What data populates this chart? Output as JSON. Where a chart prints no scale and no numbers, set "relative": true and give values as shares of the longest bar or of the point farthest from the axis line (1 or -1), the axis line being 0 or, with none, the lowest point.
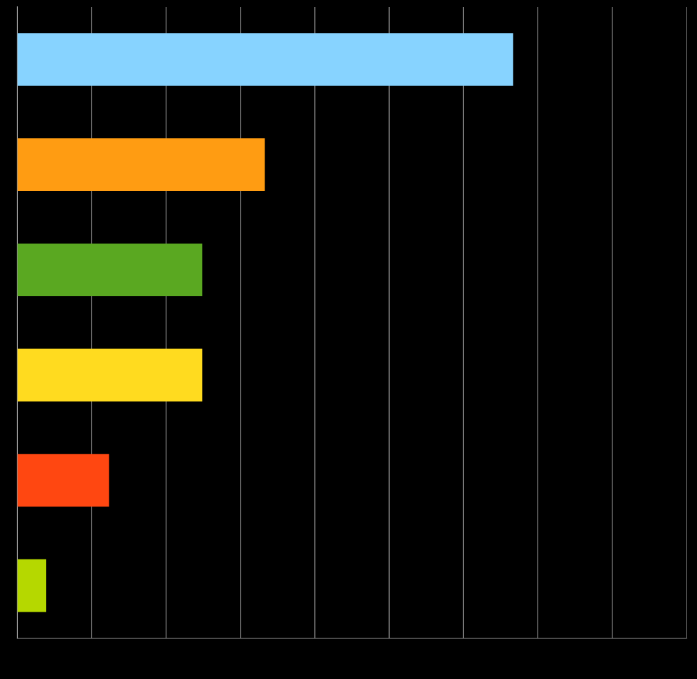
{
  "chart_data": {
    "type": "bar",
    "orientation": "horizontal",
    "relative": true,
    "categories": [
      null,
      null,
      null,
      null,
      null,
      null
    ],
    "values": [
      1,
      0.499,
      0.373,
      0.373,
      0.185,
      0.058
    ],
    "colors": [
      "#87d3ff",
      "#ff9c12",
      "#5aa821",
      "#ffdb1f",
      "#ff4711",
      "#b5d800"
    ],
    "grid": "x"
  }
}
